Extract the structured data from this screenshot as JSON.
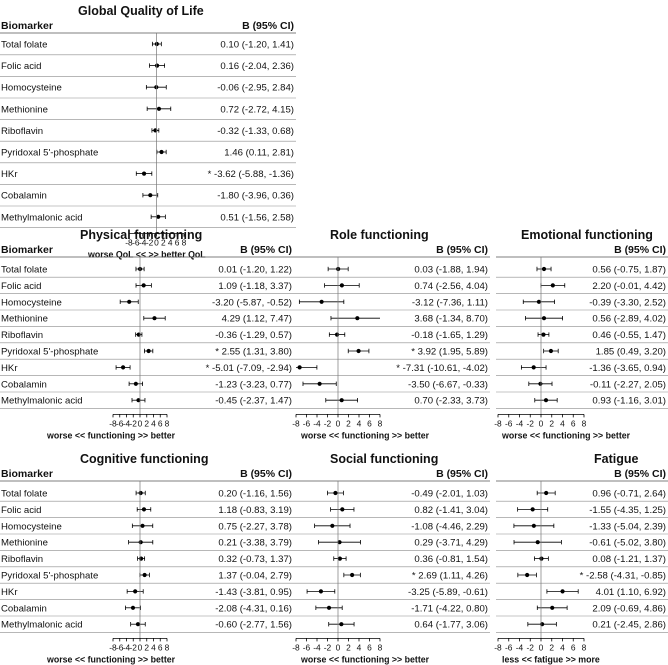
{
  "chart_data": {
    "type": "forest",
    "estimate_header": "B (95% CI)",
    "biomarker_header": "Biomarker",
    "biomarkers": [
      "Total folate",
      "Folic acid",
      "Homocysteine",
      "Methionine",
      "Riboflavin",
      "Pyridoxal 5'-phosphate",
      "HKr",
      "Cobalamin",
      "Methylmalonic acid"
    ],
    "xticks": [
      -8,
      -6,
      -4,
      -2,
      0,
      2,
      4,
      6,
      8
    ],
    "xlim": [
      -8,
      8
    ],
    "panels": [
      {
        "title": "Global Quality of Life",
        "axis_caption": "worse QoL <<      >> better QoL",
        "rows": [
          {
            "b": 0.1,
            "lo": -1.2,
            "hi": 1.41,
            "sig": false,
            "text": "0.10 (-1.20, 1.41)"
          },
          {
            "b": 0.16,
            "lo": -2.04,
            "hi": 2.36,
            "sig": false,
            "text": "0.16 (-2.04, 2.36)"
          },
          {
            "b": -0.06,
            "lo": -2.95,
            "hi": 2.84,
            "sig": false,
            "text": "-0.06 (-2.95, 2.84)"
          },
          {
            "b": 0.72,
            "lo": -2.72,
            "hi": 4.15,
            "sig": false,
            "text": "0.72 (-2.72, 4.15)"
          },
          {
            "b": -0.32,
            "lo": -1.33,
            "hi": 0.68,
            "sig": false,
            "text": "-0.32 (-1.33, 0.68)"
          },
          {
            "b": 1.46,
            "lo": 0.11,
            "hi": 2.81,
            "sig": false,
            "text": "1.46 (0.11, 2.81)"
          },
          {
            "b": -3.62,
            "lo": -5.88,
            "hi": -1.36,
            "sig": true,
            "text": "* -3.62 (-5.88, -1.36)"
          },
          {
            "b": -1.8,
            "lo": -3.96,
            "hi": 0.36,
            "sig": false,
            "text": "-1.80 (-3.96, 0.36)"
          },
          {
            "b": 0.51,
            "lo": -1.56,
            "hi": 2.58,
            "sig": false,
            "text": "0.51 (-1.56, 2.58)"
          }
        ]
      },
      {
        "title": "Physical functioning",
        "axis_caption": "worse << functioning >> better",
        "rows": [
          {
            "b": 0.01,
            "lo": -1.2,
            "hi": 1.22,
            "sig": false,
            "text": "0.01 (-1.20, 1.22)"
          },
          {
            "b": 1.09,
            "lo": -1.18,
            "hi": 3.37,
            "sig": false,
            "text": "1.09 (-1.18, 3.37)"
          },
          {
            "b": -3.2,
            "lo": -5.87,
            "hi": -0.52,
            "sig": false,
            "text": "-3.20 (-5.87, -0.52)"
          },
          {
            "b": 4.29,
            "lo": 1.12,
            "hi": 7.47,
            "sig": false,
            "text": "4.29 (1.12, 7.47)"
          },
          {
            "b": -0.36,
            "lo": -1.29,
            "hi": 0.57,
            "sig": false,
            "text": "-0.36 (-1.29, 0.57)"
          },
          {
            "b": 2.55,
            "lo": 1.31,
            "hi": 3.8,
            "sig": true,
            "text": "* 2.55 (1.31, 3.80)"
          },
          {
            "b": -5.01,
            "lo": -7.09,
            "hi": -2.94,
            "sig": true,
            "text": "* -5.01 (-7.09, -2.94)"
          },
          {
            "b": -1.23,
            "lo": -3.23,
            "hi": 0.77,
            "sig": false,
            "text": "-1.23 (-3.23, 0.77)"
          },
          {
            "b": -0.45,
            "lo": -2.37,
            "hi": 1.47,
            "sig": false,
            "text": "-0.45 (-2.37, 1.47)"
          }
        ]
      },
      {
        "title": "Role functioning",
        "axis_caption": "worse << functioning >> better",
        "rows": [
          {
            "b": 0.03,
            "lo": -1.88,
            "hi": 1.94,
            "sig": false,
            "text": "0.03 (-1.88, 1.94)"
          },
          {
            "b": 0.74,
            "lo": -2.56,
            "hi": 4.04,
            "sig": false,
            "text": "0.74 (-2.56, 4.04)"
          },
          {
            "b": -3.12,
            "lo": -7.36,
            "hi": 1.11,
            "sig": false,
            "text": "-3.12 (-7.36, 1.11)"
          },
          {
            "b": 3.68,
            "lo": -1.34,
            "hi": 8.7,
            "sig": false,
            "text": "3.68 (-1.34, 8.70)"
          },
          {
            "b": -0.18,
            "lo": -1.65,
            "hi": 1.29,
            "sig": false,
            "text": "-0.18 (-1.65, 1.29)"
          },
          {
            "b": 3.92,
            "lo": 1.95,
            "hi": 5.89,
            "sig": true,
            "text": "* 3.92 (1.95, 5.89)"
          },
          {
            "b": -7.31,
            "lo": -10.61,
            "hi": -4.02,
            "sig": true,
            "text": "* -7.31 (-10.61, -4.02)"
          },
          {
            "b": -3.5,
            "lo": -6.67,
            "hi": -0.33,
            "sig": false,
            "text": "-3.50 (-6.67, -0.33)"
          },
          {
            "b": 0.7,
            "lo": -2.33,
            "hi": 3.73,
            "sig": false,
            "text": "0.70 (-2.33, 3.73)"
          }
        ]
      },
      {
        "title": "Emotional functioning",
        "axis_caption": "worse << functioning >> better",
        "rows": [
          {
            "b": 0.56,
            "lo": -0.75,
            "hi": 1.87,
            "sig": false,
            "text": "0.56 (-0.75, 1.87)"
          },
          {
            "b": 2.2,
            "lo": -0.01,
            "hi": 4.42,
            "sig": false,
            "text": "2.20 (-0.01, 4.42)"
          },
          {
            "b": -0.39,
            "lo": -3.3,
            "hi": 2.52,
            "sig": false,
            "text": "-0.39 (-3.30, 2.52)"
          },
          {
            "b": 0.56,
            "lo": -2.89,
            "hi": 4.02,
            "sig": false,
            "text": "0.56 (-2.89, 4.02)"
          },
          {
            "b": 0.46,
            "lo": -0.55,
            "hi": 1.47,
            "sig": false,
            "text": "0.46 (-0.55, 1.47)"
          },
          {
            "b": 1.85,
            "lo": 0.49,
            "hi": 3.2,
            "sig": false,
            "text": "1.85 (0.49, 3.20)"
          },
          {
            "b": -1.36,
            "lo": -3.65,
            "hi": 0.94,
            "sig": false,
            "text": "-1.36 (-3.65, 0.94)"
          },
          {
            "b": -0.11,
            "lo": -2.27,
            "hi": 2.05,
            "sig": false,
            "text": "-0.11 (-2.27, 2.05)"
          },
          {
            "b": 0.93,
            "lo": -1.16,
            "hi": 3.01,
            "sig": false,
            "text": "0.93 (-1.16, 3.01)"
          }
        ]
      },
      {
        "title": "Cognitive functioning",
        "axis_caption": "worse << functioning >> better",
        "rows": [
          {
            "b": 0.2,
            "lo": -1.16,
            "hi": 1.56,
            "sig": false,
            "text": "0.20 (-1.16, 1.56)"
          },
          {
            "b": 1.18,
            "lo": -0.83,
            "hi": 3.19,
            "sig": false,
            "text": "1.18 (-0.83, 3.19)"
          },
          {
            "b": 0.75,
            "lo": -2.27,
            "hi": 3.78,
            "sig": false,
            "text": "0.75 (-2.27, 3.78)"
          },
          {
            "b": 0.21,
            "lo": -3.38,
            "hi": 3.79,
            "sig": false,
            "text": "0.21 (-3.38, 3.79)"
          },
          {
            "b": 0.32,
            "lo": -0.73,
            "hi": 1.37,
            "sig": false,
            "text": "0.32 (-0.73, 1.37)"
          },
          {
            "b": 1.37,
            "lo": -0.04,
            "hi": 2.79,
            "sig": false,
            "text": "1.37 (-0.04, 2.79)"
          },
          {
            "b": -1.43,
            "lo": -3.81,
            "hi": 0.95,
            "sig": false,
            "text": "-1.43 (-3.81, 0.95)"
          },
          {
            "b": -2.08,
            "lo": -4.31,
            "hi": 0.16,
            "sig": false,
            "text": "-2.08 (-4.31, 0.16)"
          },
          {
            "b": -0.6,
            "lo": -2.77,
            "hi": 1.56,
            "sig": false,
            "text": "-0.60 (-2.77, 1.56)"
          }
        ]
      },
      {
        "title": "Social functioning",
        "axis_caption": "worse << functioning >> better",
        "rows": [
          {
            "b": -0.49,
            "lo": -2.01,
            "hi": 1.03,
            "sig": false,
            "text": "-0.49 (-2.01, 1.03)"
          },
          {
            "b": 0.82,
            "lo": -1.41,
            "hi": 3.04,
            "sig": false,
            "text": "0.82 (-1.41, 3.04)"
          },
          {
            "b": -1.08,
            "lo": -4.46,
            "hi": 2.29,
            "sig": false,
            "text": "-1.08 (-4.46, 2.29)"
          },
          {
            "b": 0.29,
            "lo": -3.71,
            "hi": 4.29,
            "sig": false,
            "text": "0.29 (-3.71, 4.29)"
          },
          {
            "b": 0.36,
            "lo": -0.81,
            "hi": 1.54,
            "sig": false,
            "text": "0.36 (-0.81, 1.54)"
          },
          {
            "b": 2.69,
            "lo": 1.11,
            "hi": 4.26,
            "sig": true,
            "text": "* 2.69 (1.11, 4.26)"
          },
          {
            "b": -3.25,
            "lo": -5.89,
            "hi": -0.61,
            "sig": false,
            "text": "-3.25 (-5.89, -0.61)"
          },
          {
            "b": -1.71,
            "lo": -4.22,
            "hi": 0.8,
            "sig": false,
            "text": "-1.71 (-4.22, 0.80)"
          },
          {
            "b": 0.64,
            "lo": -1.77,
            "hi": 3.06,
            "sig": false,
            "text": "0.64 (-1.77, 3.06)"
          }
        ]
      },
      {
        "title": "Fatigue",
        "axis_caption": "less << fatigue >> more",
        "rows": [
          {
            "b": 0.96,
            "lo": -0.71,
            "hi": 2.64,
            "sig": false,
            "text": "0.96 (-0.71, 2.64)"
          },
          {
            "b": -1.55,
            "lo": -4.35,
            "hi": 1.25,
            "sig": false,
            "text": "-1.55 (-4.35, 1.25)"
          },
          {
            "b": -1.33,
            "lo": -5.04,
            "hi": 2.39,
            "sig": false,
            "text": "-1.33 (-5.04, 2.39)"
          },
          {
            "b": -0.61,
            "lo": -5.02,
            "hi": 3.8,
            "sig": false,
            "text": "-0.61 (-5.02, 3.80)"
          },
          {
            "b": 0.08,
            "lo": -1.21,
            "hi": 1.37,
            "sig": false,
            "text": "0.08 (-1.21, 1.37)"
          },
          {
            "b": -2.58,
            "lo": -4.31,
            "hi": -0.85,
            "sig": true,
            "text": "* -2.58 (-4.31, -0.85)"
          },
          {
            "b": 4.01,
            "lo": 1.1,
            "hi": 6.92,
            "sig": false,
            "text": "4.01 (1.10, 6.92)"
          },
          {
            "b": 2.09,
            "lo": -0.69,
            "hi": 4.86,
            "sig": false,
            "text": "2.09 (-0.69, 4.86)"
          },
          {
            "b": 0.21,
            "lo": -2.45,
            "hi": 2.86,
            "sig": false,
            "text": "0.21 (-2.45, 2.86)"
          }
        ]
      }
    ]
  }
}
